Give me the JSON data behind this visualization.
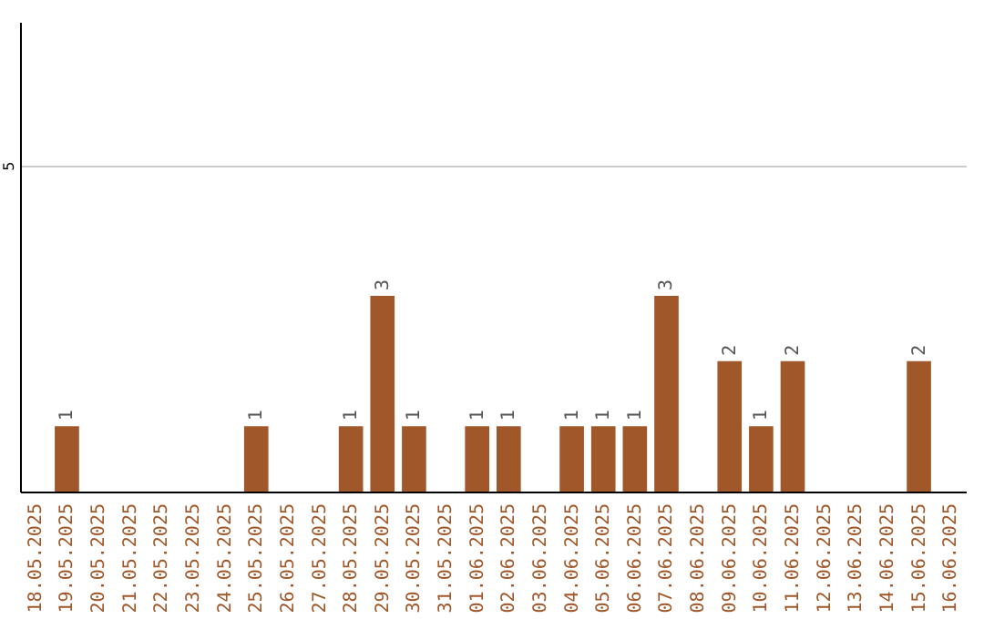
{
  "chart_data": {
    "type": "bar",
    "categories": [
      "18.05.2025",
      "19.05.2025",
      "20.05.2025",
      "21.05.2025",
      "22.05.2025",
      "23.05.2025",
      "24.05.2025",
      "25.05.2025",
      "26.05.2025",
      "27.05.2025",
      "28.05.2025",
      "29.05.2025",
      "30.05.2025",
      "31.05.2025",
      "01.06.2025",
      "02.06.2025",
      "03.06.2025",
      "04.06.2025",
      "05.06.2025",
      "06.06.2025",
      "07.06.2025",
      "08.06.2025",
      "09.06.2025",
      "10.06.2025",
      "11.06.2025",
      "12.06.2025",
      "13.06.2025",
      "14.06.2025",
      "15.06.2025",
      "16.06.2025"
    ],
    "values": [
      0,
      1,
      0,
      0,
      0,
      0,
      0,
      1,
      0,
      0,
      1,
      3,
      1,
      0,
      1,
      1,
      0,
      1,
      1,
      1,
      3,
      0,
      2,
      1,
      2,
      0,
      0,
      0,
      2,
      0
    ],
    "value_labels": [
      null,
      "1",
      null,
      null,
      null,
      null,
      null,
      "1",
      null,
      null,
      "1",
      "3",
      "1",
      null,
      "1",
      "1",
      null,
      "1",
      "1",
      "1",
      "3",
      null,
      "2",
      "1",
      "2",
      null,
      null,
      null,
      "2",
      null
    ],
    "color": "#a0582a",
    "ylim": [
      0,
      7.2
    ],
    "yticks": [
      5
    ],
    "grid": "y"
  }
}
